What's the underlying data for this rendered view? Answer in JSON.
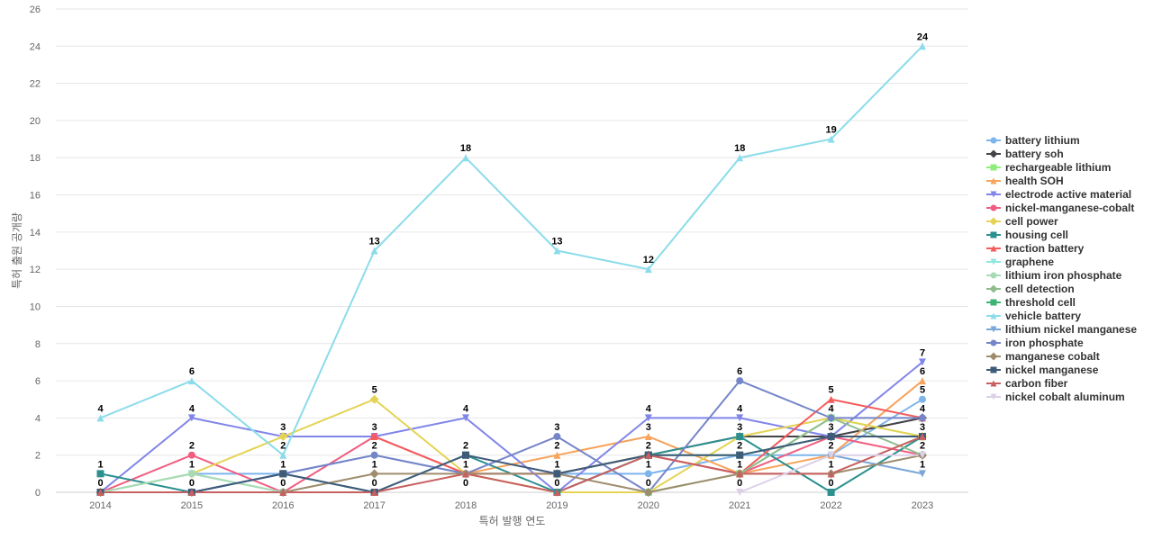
{
  "chart_data": {
    "type": "line",
    "title": "",
    "xlabel": "특허 발행 연도",
    "ylabel": "특허 출원 공개량",
    "ylim": [
      0,
      26
    ],
    "yticks": [
      0,
      2,
      4,
      6,
      8,
      10,
      12,
      14,
      16,
      18,
      20,
      22,
      24,
      26
    ],
    "grid": true,
    "legend_position": "right",
    "categories": [
      "2014",
      "2015",
      "2016",
      "2017",
      "2018",
      "2019",
      "2020",
      "2021",
      "2022",
      "2023"
    ],
    "series": [
      {
        "name": "battery lithium",
        "color": "#7cb5ec",
        "marker": "circle",
        "values": [
          0,
          1,
          1,
          2,
          1,
          1,
          1,
          2,
          2,
          5
        ]
      },
      {
        "name": "battery soh",
        "color": "#434348",
        "marker": "diamond",
        "values": [
          null,
          null,
          null,
          null,
          null,
          1,
          2,
          3,
          3,
          4
        ]
      },
      {
        "name": "rechargeable lithium",
        "color": "#90ed7d",
        "marker": "square",
        "values": [
          null,
          null,
          null,
          null,
          null,
          null,
          0,
          1,
          4,
          3
        ]
      },
      {
        "name": "health SOH",
        "color": "#f7a35c",
        "marker": "triangle",
        "values": [
          null,
          null,
          null,
          null,
          1,
          2,
          3,
          1,
          2,
          6
        ]
      },
      {
        "name": "electrode active material",
        "color": "#8085e9",
        "marker": "triangle-down",
        "values": [
          0,
          4,
          3,
          3,
          4,
          0,
          4,
          4,
          3,
          7
        ]
      },
      {
        "name": "nickel-manganese-cobalt",
        "color": "#f15c80",
        "marker": "circle",
        "values": [
          0,
          2,
          0,
          3,
          1,
          1,
          2,
          1,
          3,
          2
        ]
      },
      {
        "name": "cell power",
        "color": "#e4d354",
        "marker": "diamond",
        "values": [
          0,
          1,
          3,
          5,
          1,
          0,
          0,
          3,
          4,
          3
        ]
      },
      {
        "name": "housing cell",
        "color": "#2b908f",
        "marker": "square",
        "values": [
          1,
          0,
          1,
          0,
          2,
          0,
          2,
          3,
          0,
          3
        ]
      },
      {
        "name": "traction battery",
        "color": "#f45b5b",
        "marker": "triangle",
        "values": [
          null,
          null,
          null,
          3,
          1,
          1,
          2,
          1,
          5,
          4
        ]
      },
      {
        "name": "graphene",
        "color": "#91e8e1",
        "marker": "triangle-down",
        "values": [
          0,
          1,
          0,
          null,
          null,
          null,
          null,
          null,
          null,
          null
        ]
      },
      {
        "name": "lithium iron phosphate",
        "color": "#a8dbb4",
        "marker": "circle",
        "values": [
          0,
          1,
          0,
          null,
          null,
          null,
          null,
          null,
          null,
          null
        ]
      },
      {
        "name": "cell detection",
        "color": "#8fbc8f",
        "marker": "diamond",
        "values": [
          null,
          null,
          null,
          null,
          null,
          null,
          null,
          1,
          4,
          2
        ]
      },
      {
        "name": "threshold cell",
        "color": "#3cb371",
        "marker": "square",
        "values": [
          null,
          null,
          null,
          null,
          null,
          1,
          2,
          2,
          3,
          3
        ]
      },
      {
        "name": "vehicle battery",
        "color": "#8bdcea",
        "marker": "triangle",
        "values": [
          4,
          6,
          2,
          13,
          18,
          13,
          12,
          18,
          19,
          24
        ]
      },
      {
        "name": "lithium nickel manganese",
        "color": "#7aa6d8",
        "marker": "triangle-down",
        "values": [
          null,
          null,
          null,
          null,
          null,
          null,
          null,
          null,
          2,
          1
        ]
      },
      {
        "name": "iron phosphate",
        "color": "#7585c8",
        "marker": "circle",
        "values": [
          0,
          0,
          1,
          2,
          1,
          3,
          0,
          6,
          4,
          4
        ]
      },
      {
        "name": "manganese cobalt",
        "color": "#9e8c6e",
        "marker": "diamond",
        "values": [
          0,
          0,
          0,
          1,
          1,
          1,
          0,
          1,
          1,
          2
        ]
      },
      {
        "name": "nickel manganese",
        "color": "#3f5b7a",
        "marker": "square",
        "values": [
          0,
          0,
          1,
          0,
          2,
          1,
          2,
          2,
          3,
          3
        ]
      },
      {
        "name": "carbon fiber",
        "color": "#c76060",
        "marker": "triangle",
        "values": [
          0,
          0,
          0,
          0,
          1,
          0,
          2,
          1,
          1,
          3
        ]
      },
      {
        "name": "nickel cobalt aluminum",
        "color": "#dcd0e8",
        "marker": "triangle-down",
        "values": [
          null,
          null,
          null,
          null,
          null,
          null,
          null,
          0,
          2,
          2
        ]
      }
    ],
    "data_labels": [
      {
        "x": "2014",
        "v": 4
      },
      {
        "x": "2014",
        "v": 1
      },
      {
        "x": "2014",
        "v": 0
      },
      {
        "x": "2015",
        "v": 6
      },
      {
        "x": "2015",
        "v": 4
      },
      {
        "x": "2015",
        "v": 2
      },
      {
        "x": "2015",
        "v": 1
      },
      {
        "x": "2015",
        "v": 0
      },
      {
        "x": "2016",
        "v": 3
      },
      {
        "x": "2016",
        "v": 2
      },
      {
        "x": "2016",
        "v": 1
      },
      {
        "x": "2016",
        "v": 0
      },
      {
        "x": "2017",
        "v": 13
      },
      {
        "x": "2017",
        "v": 5
      },
      {
        "x": "2017",
        "v": 3
      },
      {
        "x": "2017",
        "v": 2
      },
      {
        "x": "2017",
        "v": 1
      },
      {
        "x": "2017",
        "v": 0
      },
      {
        "x": "2018",
        "v": 18
      },
      {
        "x": "2018",
        "v": 4
      },
      {
        "x": "2018",
        "v": 2
      },
      {
        "x": "2018",
        "v": 1
      },
      {
        "x": "2018",
        "v": 0
      },
      {
        "x": "2019",
        "v": 13
      },
      {
        "x": "2019",
        "v": 3
      },
      {
        "x": "2019",
        "v": 2
      },
      {
        "x": "2019",
        "v": 1
      },
      {
        "x": "2019",
        "v": 0
      },
      {
        "x": "2020",
        "v": 12
      },
      {
        "x": "2020",
        "v": 4
      },
      {
        "x": "2020",
        "v": 3
      },
      {
        "x": "2020",
        "v": 2
      },
      {
        "x": "2020",
        "v": 1
      },
      {
        "x": "2020",
        "v": 0
      },
      {
        "x": "2021",
        "v": 18
      },
      {
        "x": "2021",
        "v": 6
      },
      {
        "x": "2021",
        "v": 4
      },
      {
        "x": "2021",
        "v": 3
      },
      {
        "x": "2021",
        "v": 2
      },
      {
        "x": "2021",
        "v": 1
      },
      {
        "x": "2021",
        "v": 0
      },
      {
        "x": "2022",
        "v": 19
      },
      {
        "x": "2022",
        "v": 5
      },
      {
        "x": "2022",
        "v": 4
      },
      {
        "x": "2022",
        "v": 3
      },
      {
        "x": "2022",
        "v": 2
      },
      {
        "x": "2022",
        "v": 1
      },
      {
        "x": "2022",
        "v": 0
      },
      {
        "x": "2023",
        "v": 24
      },
      {
        "x": "2023",
        "v": 7
      },
      {
        "x": "2023",
        "v": 6
      },
      {
        "x": "2023",
        "v": 5
      },
      {
        "x": "2023",
        "v": 4
      },
      {
        "x": "2023",
        "v": 3
      },
      {
        "x": "2023",
        "v": 2
      },
      {
        "x": "2023",
        "v": 1
      }
    ]
  }
}
